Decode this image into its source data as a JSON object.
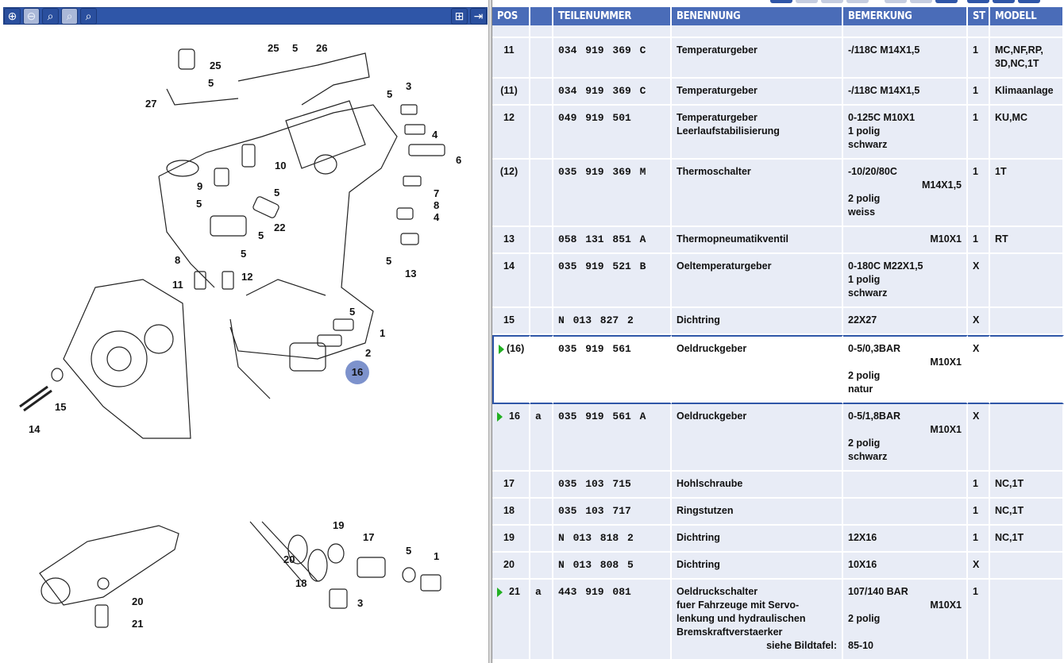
{
  "toolbar": {
    "buttons": [
      {
        "icon": "zoom-in-icon",
        "glyph": "⊕",
        "enabled": true
      },
      {
        "icon": "zoom-out-icon",
        "glyph": "⊖",
        "enabled": false
      },
      {
        "icon": "zoom-area-icon",
        "glyph": "⌕",
        "enabled": true
      },
      {
        "icon": "zoom-100-icon",
        "glyph": "⌕",
        "enabled": false
      },
      {
        "icon": "zoom-fit-icon",
        "glyph": "⌕",
        "enabled": true
      }
    ],
    "right_buttons": [
      {
        "icon": "layout-split-icon",
        "glyph": "⊞"
      },
      {
        "icon": "move-divider-icon",
        "glyph": "⇥"
      }
    ]
  },
  "diagram": {
    "callouts": [
      "25",
      "5",
      "27",
      "25",
      "5",
      "26",
      "5",
      "3",
      "4",
      "6",
      "10",
      "9",
      "5",
      "5",
      "22",
      "5",
      "5",
      "8",
      "11",
      "12",
      "7",
      "8",
      "4",
      "5",
      "13",
      "5",
      "1",
      "2",
      "16",
      "15",
      "14",
      "20",
      "21",
      "19",
      "17",
      "20",
      "18",
      "5",
      "1",
      "3"
    ],
    "highlighted": "16",
    "highlight_color": "#7d92cc"
  },
  "table": {
    "headers": [
      "POS",
      "",
      "TEILENUMMER",
      "BENENNUNG",
      "BEMERKUNG",
      "ST",
      "MODELL"
    ],
    "header_color": "#4a6cb8",
    "rows": [
      {
        "pos": "11",
        "var": "",
        "tn": "034 919 369 C",
        "ben": [
          "Temperaturgeber"
        ],
        "bem": [
          {
            "t": "-/118C M14X1,5"
          }
        ],
        "st": "1",
        "mod": [
          "MC,NF,RP,",
          "3D,NC,1T"
        ]
      },
      {
        "pos": "(11)",
        "var": "",
        "tn": "034 919 369 C",
        "ben": [
          "Temperaturgeber"
        ],
        "bem": [
          {
            "t": "-/118C M14X1,5"
          }
        ],
        "st": "1",
        "mod": [
          "Klimaanlage"
        ]
      },
      {
        "pos": "12",
        "var": "",
        "tn": "049 919 501",
        "ben": [
          "Temperaturgeber",
          "Leerlaufstabilisierung"
        ],
        "bem": [
          {
            "t": "0-125C   M10X1"
          },
          {
            "t": "1 polig"
          },
          {
            "t": "schwarz"
          }
        ],
        "st": "1",
        "mod": [
          "KU,MC"
        ]
      },
      {
        "pos": "(12)",
        "var": "",
        "tn": "035 919 369 M",
        "ben": [
          "Thermoschalter"
        ],
        "bem": [
          {
            "t": "-10/20/80C"
          },
          {
            "t": "M14X1,5",
            "r": true
          },
          {
            "t": "2 polig"
          },
          {
            "t": "weiss"
          }
        ],
        "st": "1",
        "mod": [
          "1T"
        ]
      },
      {
        "pos": "13",
        "var": "",
        "tn": "058 131 851 A",
        "ben": [
          "Thermopneumatikventil"
        ],
        "bem": [
          {
            "t": "M10X1",
            "r": true
          }
        ],
        "st": "1",
        "mod": [
          "RT"
        ]
      },
      {
        "pos": "14",
        "var": "",
        "tn": "035 919 521 B",
        "ben": [
          "Oeltemperaturgeber"
        ],
        "bem": [
          {
            "t": "0-180C M22X1,5"
          },
          {
            "t": "1 polig"
          },
          {
            "t": "schwarz"
          }
        ],
        "st": "X",
        "mod": [
          ""
        ]
      },
      {
        "pos": "15",
        "var": "",
        "tn": "N  013 827 2",
        "ben": [
          "Dichtring"
        ],
        "bem": [
          {
            "t": "22X27"
          }
        ],
        "st": "X",
        "mod": [
          ""
        ]
      },
      {
        "pos": "(16)",
        "var": "",
        "tn": "035 919 561",
        "ben": [
          "Oeldruckgeber"
        ],
        "bem": [
          {
            "t": "0-5/0,3BAR"
          },
          {
            "t": "M10X1",
            "r": true
          },
          {
            "t": "2 polig"
          },
          {
            "t": "natur"
          }
        ],
        "st": "X",
        "mod": [
          ""
        ],
        "selected": true,
        "marker": true
      },
      {
        "pos": "16",
        "var": "a",
        "tn": "035 919 561 A",
        "ben": [
          "Oeldruckgeber"
        ],
        "bem": [
          {
            "t": "0-5/1,8BAR"
          },
          {
            "t": "M10X1",
            "r": true
          },
          {
            "t": "2 polig"
          },
          {
            "t": "schwarz"
          }
        ],
        "st": "X",
        "mod": [
          ""
        ],
        "marker": true
      },
      {
        "pos": "17",
        "var": "",
        "tn": "035 103 715",
        "ben": [
          "Hohlschraube"
        ],
        "bem": [],
        "st": "1",
        "mod": [
          "NC,1T"
        ]
      },
      {
        "pos": "18",
        "var": "",
        "tn": "035 103 717",
        "ben": [
          "Ringstutzen"
        ],
        "bem": [],
        "st": "1",
        "mod": [
          "NC,1T"
        ]
      },
      {
        "pos": "19",
        "var": "",
        "tn": "N  013 818 2",
        "ben": [
          "Dichtring"
        ],
        "bem": [
          {
            "t": "12X16"
          }
        ],
        "st": "1",
        "mod": [
          "NC,1T"
        ]
      },
      {
        "pos": "20",
        "var": "",
        "tn": "N  013 808 5",
        "ben": [
          "Dichtring"
        ],
        "bem": [
          {
            "t": "10X16"
          }
        ],
        "st": "X",
        "mod": [
          ""
        ]
      },
      {
        "pos": "21",
        "var": "a",
        "tn": "443 919 081",
        "ben": [
          "Oeldruckschalter",
          "fuer Fahrzeuge mit Servo-",
          "lenkung und hydraulischen",
          "Bremskraftverstaerker",
          "siehe Bildtafel:"
        ],
        "bem": [
          {
            "t": "107/140 BAR"
          },
          {
            "t": "M10X1",
            "r": true
          },
          {
            "t": "2 polig"
          },
          {
            "t": ""
          },
          {
            "t": "85-10"
          }
        ],
        "st": "1",
        "mod": [
          ""
        ],
        "marker": true
      }
    ]
  }
}
